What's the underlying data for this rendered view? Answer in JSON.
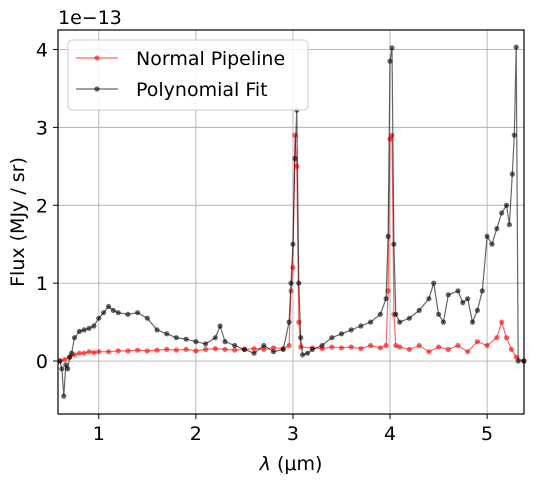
{
  "chart_data": {
    "type": "line",
    "xlabel_symbol": "λ",
    "xlabel_unit": "(μm)",
    "ylabel": "Flux (MJy / sr)",
    "offset_text": "1e−13",
    "xlim": [
      0.58,
      5.38
    ],
    "ylim": [
      -0.68,
      4.25
    ],
    "x_ticks": [
      1,
      2,
      3,
      4,
      5
    ],
    "y_ticks": [
      0,
      1,
      2,
      3,
      4
    ],
    "grid": true,
    "legend_position": "top-left",
    "series": [
      {
        "name": "Normal Pipeline",
        "color": "#ff0000",
        "points": [
          [
            0.6,
            0.0
          ],
          [
            0.65,
            0.02
          ],
          [
            0.7,
            0.05
          ],
          [
            0.75,
            0.08
          ],
          [
            0.8,
            0.1
          ],
          [
            0.85,
            0.1
          ],
          [
            0.9,
            0.12
          ],
          [
            0.95,
            0.11
          ],
          [
            1.0,
            0.12
          ],
          [
            1.1,
            0.12
          ],
          [
            1.2,
            0.13
          ],
          [
            1.3,
            0.13
          ],
          [
            1.4,
            0.14
          ],
          [
            1.5,
            0.13
          ],
          [
            1.6,
            0.14
          ],
          [
            1.7,
            0.15
          ],
          [
            1.8,
            0.14
          ],
          [
            1.9,
            0.15
          ],
          [
            2.0,
            0.13
          ],
          [
            2.1,
            0.15
          ],
          [
            2.2,
            0.16
          ],
          [
            2.3,
            0.15
          ],
          [
            2.4,
            0.14
          ],
          [
            2.5,
            0.15
          ],
          [
            2.6,
            0.16
          ],
          [
            2.7,
            0.15
          ],
          [
            2.8,
            0.17
          ],
          [
            2.9,
            0.16
          ],
          [
            2.96,
            0.2
          ],
          [
            2.98,
            0.9
          ],
          [
            3.0,
            1.2
          ],
          [
            3.02,
            2.9
          ],
          [
            3.04,
            2.5
          ],
          [
            3.06,
            0.5
          ],
          [
            3.08,
            0.18
          ],
          [
            3.2,
            0.17
          ],
          [
            3.3,
            0.16
          ],
          [
            3.4,
            0.18
          ],
          [
            3.5,
            0.17
          ],
          [
            3.6,
            0.18
          ],
          [
            3.7,
            0.16
          ],
          [
            3.8,
            0.2
          ],
          [
            3.9,
            0.17
          ],
          [
            3.96,
            0.2
          ],
          [
            3.98,
            0.9
          ],
          [
            4.0,
            2.85
          ],
          [
            4.02,
            2.9
          ],
          [
            4.04,
            0.6
          ],
          [
            4.06,
            0.2
          ],
          [
            4.1,
            0.18
          ],
          [
            4.2,
            0.15
          ],
          [
            4.3,
            0.2
          ],
          [
            4.4,
            0.12
          ],
          [
            4.5,
            0.18
          ],
          [
            4.6,
            0.15
          ],
          [
            4.7,
            0.2
          ],
          [
            4.8,
            0.12
          ],
          [
            4.9,
            0.25
          ],
          [
            5.0,
            0.2
          ],
          [
            5.1,
            0.3
          ],
          [
            5.15,
            0.5
          ],
          [
            5.2,
            0.3
          ],
          [
            5.25,
            0.15
          ],
          [
            5.3,
            0.05
          ],
          [
            5.38,
            0.0
          ]
        ]
      },
      {
        "name": "Polynomial Fit",
        "color": "#000000",
        "points": [
          [
            0.6,
            0.0
          ],
          [
            0.62,
            -0.1
          ],
          [
            0.64,
            -0.45
          ],
          [
            0.66,
            -0.05
          ],
          [
            0.68,
            -0.1
          ],
          [
            0.7,
            0.05
          ],
          [
            0.72,
            0.1
          ],
          [
            0.75,
            0.3
          ],
          [
            0.8,
            0.38
          ],
          [
            0.85,
            0.4
          ],
          [
            0.9,
            0.42
          ],
          [
            0.95,
            0.45
          ],
          [
            1.0,
            0.55
          ],
          [
            1.05,
            0.62
          ],
          [
            1.1,
            0.7
          ],
          [
            1.15,
            0.65
          ],
          [
            1.2,
            0.62
          ],
          [
            1.3,
            0.6
          ],
          [
            1.4,
            0.62
          ],
          [
            1.5,
            0.55
          ],
          [
            1.6,
            0.4
          ],
          [
            1.7,
            0.35
          ],
          [
            1.8,
            0.3
          ],
          [
            1.9,
            0.28
          ],
          [
            2.0,
            0.25
          ],
          [
            2.1,
            0.22
          ],
          [
            2.2,
            0.3
          ],
          [
            2.25,
            0.45
          ],
          [
            2.3,
            0.25
          ],
          [
            2.4,
            0.2
          ],
          [
            2.5,
            0.15
          ],
          [
            2.6,
            0.1
          ],
          [
            2.7,
            0.2
          ],
          [
            2.8,
            0.12
          ],
          [
            2.9,
            0.15
          ],
          [
            2.96,
            0.5
          ],
          [
            2.98,
            1.0
          ],
          [
            3.0,
            1.5
          ],
          [
            3.02,
            2.6
          ],
          [
            3.04,
            3.22
          ],
          [
            3.06,
            1.0
          ],
          [
            3.08,
            0.3
          ],
          [
            3.1,
            0.08
          ],
          [
            3.15,
            0.1
          ],
          [
            3.2,
            0.15
          ],
          [
            3.3,
            0.2
          ],
          [
            3.4,
            0.3
          ],
          [
            3.5,
            0.35
          ],
          [
            3.6,
            0.4
          ],
          [
            3.7,
            0.45
          ],
          [
            3.8,
            0.5
          ],
          [
            3.9,
            0.6
          ],
          [
            3.96,
            0.8
          ],
          [
            3.98,
            1.6
          ],
          [
            4.0,
            3.85
          ],
          [
            4.02,
            4.02
          ],
          [
            4.04,
            1.5
          ],
          [
            4.06,
            0.6
          ],
          [
            4.1,
            0.5
          ],
          [
            4.2,
            0.55
          ],
          [
            4.3,
            0.65
          ],
          [
            4.4,
            0.8
          ],
          [
            4.45,
            1.0
          ],
          [
            4.5,
            0.6
          ],
          [
            4.55,
            0.5
          ],
          [
            4.6,
            0.85
          ],
          [
            4.7,
            0.9
          ],
          [
            4.75,
            0.75
          ],
          [
            4.8,
            0.8
          ],
          [
            4.85,
            0.5
          ],
          [
            4.9,
            0.65
          ],
          [
            4.95,
            0.9
          ],
          [
            5.0,
            1.6
          ],
          [
            5.05,
            1.5
          ],
          [
            5.1,
            1.7
          ],
          [
            5.15,
            1.9
          ],
          [
            5.2,
            2.0
          ],
          [
            5.23,
            1.75
          ],
          [
            5.26,
            2.4
          ],
          [
            5.28,
            2.9
          ],
          [
            5.3,
            4.03
          ],
          [
            5.32,
            0.0
          ],
          [
            5.38,
            0.0
          ]
        ]
      }
    ]
  }
}
